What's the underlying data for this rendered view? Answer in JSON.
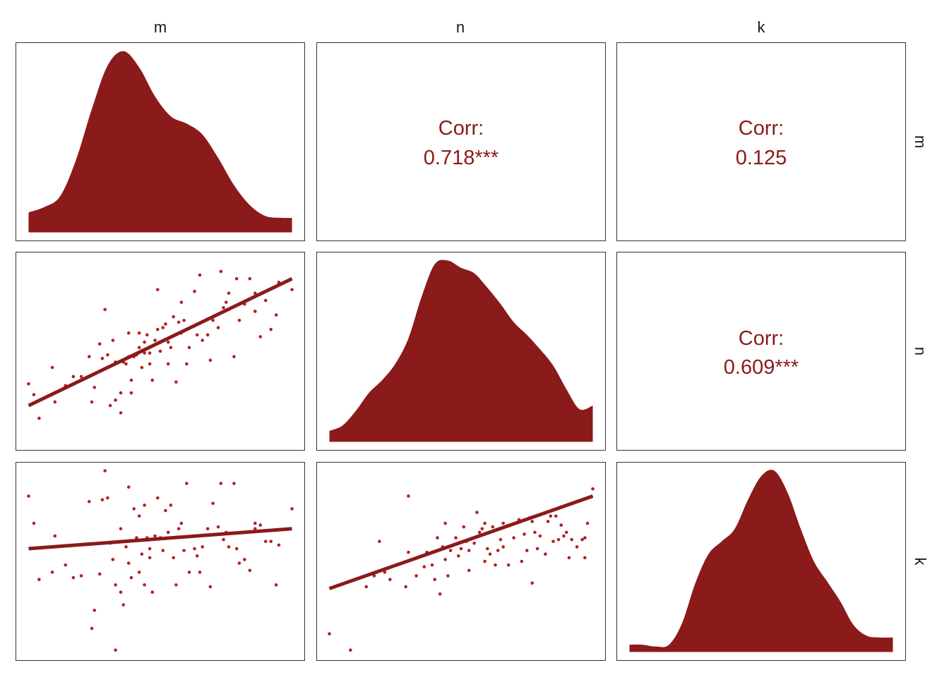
{
  "chart_data": {
    "type": "scatter",
    "variables": [
      "m",
      "n",
      "k"
    ],
    "colors": {
      "fill": "#8b1a1a",
      "points": "#b22222",
      "line": "#8b1a1a",
      "corr_text": "#8b1a1a"
    },
    "correlations": [
      {
        "row": "m",
        "col": "n",
        "label": "Corr:",
        "value": "0.718***"
      },
      {
        "row": "m",
        "col": "k",
        "label": "Corr:",
        "value": "0.125"
      },
      {
        "row": "n",
        "col": "k",
        "label": "Corr:",
        "value": "0.609***"
      }
    ],
    "densities": [
      {
        "variable": "m",
        "x_range": [
          0,
          1
        ],
        "y_range": [
          0,
          1
        ],
        "x": [
          0,
          0.06,
          0.12,
          0.18,
          0.24,
          0.3,
          0.36,
          0.42,
          0.48,
          0.54,
          0.6,
          0.66,
          0.72,
          0.78,
          0.84,
          0.9,
          0.96,
          1
        ],
        "y": [
          0.11,
          0.14,
          0.2,
          0.4,
          0.68,
          0.92,
          1.0,
          0.91,
          0.75,
          0.64,
          0.6,
          0.54,
          0.41,
          0.26,
          0.15,
          0.09,
          0.08,
          0.08
        ]
      },
      {
        "variable": "n",
        "x_range": [
          0,
          1
        ],
        "y_range": [
          0,
          1
        ],
        "x": [
          0,
          0.05,
          0.1,
          0.15,
          0.2,
          0.25,
          0.3,
          0.35,
          0.4,
          0.45,
          0.5,
          0.55,
          0.6,
          0.65,
          0.7,
          0.75,
          0.8,
          0.85,
          0.9,
          0.95,
          1
        ],
        "y": [
          0.06,
          0.09,
          0.17,
          0.27,
          0.34,
          0.43,
          0.57,
          0.8,
          0.98,
          1.0,
          0.96,
          0.93,
          0.85,
          0.76,
          0.66,
          0.59,
          0.51,
          0.42,
          0.29,
          0.18,
          0.2
        ]
      },
      {
        "variable": "k",
        "x_range": [
          0,
          1
        ],
        "y_range": [
          0,
          1
        ],
        "x": [
          0,
          0.05,
          0.1,
          0.15,
          0.2,
          0.25,
          0.3,
          0.35,
          0.4,
          0.45,
          0.5,
          0.55,
          0.6,
          0.65,
          0.7,
          0.75,
          0.8,
          0.85,
          0.9,
          0.95,
          1
        ],
        "y": [
          0.04,
          0.04,
          0.03,
          0.04,
          0.16,
          0.38,
          0.54,
          0.61,
          0.68,
          0.84,
          0.97,
          1.0,
          0.88,
          0.68,
          0.5,
          0.39,
          0.28,
          0.15,
          0.09,
          0.08,
          0.08
        ]
      }
    ],
    "scatters": [
      {
        "x": "m",
        "y": "n",
        "x_range": [
          0,
          1
        ],
        "y_range": [
          0,
          1
        ],
        "fit": [
          [
            0,
            0.2
          ],
          [
            1,
            0.9
          ]
        ],
        "points": [
          [
            0,
            0.32
          ],
          [
            0.02,
            0.26
          ],
          [
            0.04,
            0.13
          ],
          [
            0.09,
            0.41
          ],
          [
            0.1,
            0.22
          ],
          [
            0.2,
            0.36
          ],
          [
            0.23,
            0.47
          ],
          [
            0.24,
            0.22
          ],
          [
            0.28,
            0.46
          ],
          [
            0.29,
            0.73
          ],
          [
            0.3,
            0.48
          ],
          [
            0.31,
            0.2
          ],
          [
            0.32,
            0.56
          ],
          [
            0.33,
            0.23
          ],
          [
            0.33,
            0.44
          ],
          [
            0.35,
            0.27
          ],
          [
            0.35,
            0.16
          ],
          [
            0.36,
            0.44
          ],
          [
            0.37,
            0.43
          ],
          [
            0.38,
            0.47
          ],
          [
            0.38,
            0.6
          ],
          [
            0.39,
            0.27
          ],
          [
            0.39,
            0.34
          ],
          [
            0.4,
            0.47
          ],
          [
            0.41,
            0.48
          ],
          [
            0.42,
            0.52
          ],
          [
            0.42,
            0.6
          ],
          [
            0.43,
            0.41
          ],
          [
            0.44,
            0.49
          ],
          [
            0.44,
            0.55
          ],
          [
            0.45,
            0.59
          ],
          [
            0.46,
            0.43
          ],
          [
            0.46,
            0.49
          ],
          [
            0.47,
            0.34
          ],
          [
            0.48,
            0.56
          ],
          [
            0.49,
            0.62
          ],
          [
            0.49,
            0.84
          ],
          [
            0.5,
            0.5
          ],
          [
            0.51,
            0.63
          ],
          [
            0.52,
            0.65
          ],
          [
            0.53,
            0.43
          ],
          [
            0.53,
            0.55
          ],
          [
            0.54,
            0.52
          ],
          [
            0.55,
            0.69
          ],
          [
            0.56,
            0.33
          ],
          [
            0.57,
            0.66
          ],
          [
            0.58,
            0.6
          ],
          [
            0.58,
            0.77
          ],
          [
            0.59,
            0.67
          ],
          [
            0.6,
            0.43
          ],
          [
            0.61,
            0.52
          ],
          [
            0.63,
            0.83
          ],
          [
            0.64,
            0.59
          ],
          [
            0.65,
            0.92
          ],
          [
            0.66,
            0.56
          ],
          [
            0.68,
            0.59
          ],
          [
            0.69,
            0.45
          ],
          [
            0.7,
            0.67
          ],
          [
            0.72,
            0.63
          ],
          [
            0.73,
            0.94
          ],
          [
            0.74,
            0.74
          ],
          [
            0.75,
            0.77
          ],
          [
            0.76,
            0.82
          ],
          [
            0.78,
            0.47
          ],
          [
            0.79,
            0.9
          ],
          [
            0.8,
            0.67
          ],
          [
            0.82,
            0.76
          ],
          [
            0.84,
            0.9
          ],
          [
            0.86,
            0.72
          ],
          [
            0.86,
            0.82
          ],
          [
            0.88,
            0.58
          ],
          [
            0.9,
            0.78
          ],
          [
            0.92,
            0.62
          ],
          [
            0.94,
            0.7
          ],
          [
            0.95,
            0.88
          ],
          [
            1,
            0.84
          ],
          [
            0.14,
            0.31
          ],
          [
            0.17,
            0.36
          ],
          [
            0.27,
            0.54
          ],
          [
            0.25,
            0.3
          ]
        ]
      },
      {
        "x": "m",
        "y": "k",
        "x_range": [
          0,
          1
        ],
        "y_range": [
          0,
          1
        ],
        "fit": [
          [
            0,
            0.57
          ],
          [
            1,
            0.68
          ]
        ],
        "points": [
          [
            0,
            0.86
          ],
          [
            0.02,
            0.71
          ],
          [
            0.04,
            0.4
          ],
          [
            0.09,
            0.44
          ],
          [
            0.1,
            0.64
          ],
          [
            0.2,
            0.42
          ],
          [
            0.23,
            0.83
          ],
          [
            0.24,
            0.13
          ],
          [
            0.28,
            0.84
          ],
          [
            0.29,
            1.0
          ],
          [
            0.3,
            0.85
          ],
          [
            0.31,
            0.6
          ],
          [
            0.32,
            0.51
          ],
          [
            0.33,
            0.01
          ],
          [
            0.33,
            0.37
          ],
          [
            0.35,
            0.33
          ],
          [
            0.35,
            0.68
          ],
          [
            0.36,
            0.26
          ],
          [
            0.37,
            0.58
          ],
          [
            0.38,
            0.91
          ],
          [
            0.38,
            0.49
          ],
          [
            0.39,
            0.41
          ],
          [
            0.4,
            0.79
          ],
          [
            0.41,
            0.63
          ],
          [
            0.42,
            0.44
          ],
          [
            0.42,
            0.75
          ],
          [
            0.43,
            0.54
          ],
          [
            0.44,
            0.81
          ],
          [
            0.44,
            0.37
          ],
          [
            0.45,
            0.63
          ],
          [
            0.46,
            0.52
          ],
          [
            0.46,
            0.57
          ],
          [
            0.47,
            0.33
          ],
          [
            0.48,
            0.64
          ],
          [
            0.49,
            0.85
          ],
          [
            0.5,
            0.63
          ],
          [
            0.51,
            0.56
          ],
          [
            0.52,
            0.78
          ],
          [
            0.53,
            0.66
          ],
          [
            0.54,
            0.81
          ],
          [
            0.55,
            0.52
          ],
          [
            0.56,
            0.37
          ],
          [
            0.57,
            0.68
          ],
          [
            0.58,
            0.71
          ],
          [
            0.59,
            0.56
          ],
          [
            0.6,
            0.93
          ],
          [
            0.61,
            0.44
          ],
          [
            0.63,
            0.57
          ],
          [
            0.64,
            0.53
          ],
          [
            0.65,
            0.44
          ],
          [
            0.66,
            0.58
          ],
          [
            0.68,
            0.68
          ],
          [
            0.69,
            0.36
          ],
          [
            0.7,
            0.82
          ],
          [
            0.72,
            0.69
          ],
          [
            0.73,
            0.93
          ],
          [
            0.74,
            0.62
          ],
          [
            0.75,
            0.66
          ],
          [
            0.76,
            0.58
          ],
          [
            0.78,
            0.93
          ],
          [
            0.79,
            0.57
          ],
          [
            0.8,
            0.49
          ],
          [
            0.82,
            0.51
          ],
          [
            0.84,
            0.45
          ],
          [
            0.86,
            0.68
          ],
          [
            0.86,
            0.71
          ],
          [
            0.88,
            0.7
          ],
          [
            0.9,
            0.61
          ],
          [
            0.92,
            0.61
          ],
          [
            0.94,
            0.37
          ],
          [
            0.95,
            0.59
          ],
          [
            1,
            0.79
          ],
          [
            0.14,
            0.48
          ],
          [
            0.17,
            0.41
          ],
          [
            0.27,
            0.43
          ],
          [
            0.25,
            0.23
          ]
        ]
      },
      {
        "x": "n",
        "y": "k",
        "x_range": [
          0,
          1
        ],
        "y_range": [
          0,
          1
        ],
        "fit": [
          [
            0,
            0.35
          ],
          [
            1,
            0.86
          ]
        ],
        "points": [
          [
            0,
            0.1
          ],
          [
            0.08,
            0.01
          ],
          [
            0.12,
            0.41
          ],
          [
            0.14,
            0.36
          ],
          [
            0.17,
            0.42
          ],
          [
            0.19,
            0.61
          ],
          [
            0.21,
            0.44
          ],
          [
            0.23,
            0.4
          ],
          [
            0.29,
            0.36
          ],
          [
            0.3,
            0.55
          ],
          [
            0.3,
            0.86
          ],
          [
            0.33,
            0.42
          ],
          [
            0.36,
            0.47
          ],
          [
            0.37,
            0.55
          ],
          [
            0.39,
            0.48
          ],
          [
            0.4,
            0.4
          ],
          [
            0.41,
            0.63
          ],
          [
            0.42,
            0.32
          ],
          [
            0.43,
            0.58
          ],
          [
            0.44,
            0.51
          ],
          [
            0.44,
            0.71
          ],
          [
            0.45,
            0.42
          ],
          [
            0.46,
            0.56
          ],
          [
            0.47,
            0.59
          ],
          [
            0.48,
            0.63
          ],
          [
            0.49,
            0.53
          ],
          [
            0.5,
            0.57
          ],
          [
            0.51,
            0.69
          ],
          [
            0.52,
            0.61
          ],
          [
            0.53,
            0.45
          ],
          [
            0.53,
            0.56
          ],
          [
            0.55,
            0.6
          ],
          [
            0.56,
            0.77
          ],
          [
            0.57,
            0.66
          ],
          [
            0.58,
            0.68
          ],
          [
            0.59,
            0.71
          ],
          [
            0.59,
            0.5
          ],
          [
            0.6,
            0.57
          ],
          [
            0.61,
            0.54
          ],
          [
            0.62,
            0.69
          ],
          [
            0.63,
            0.48
          ],
          [
            0.64,
            0.56
          ],
          [
            0.65,
            0.62
          ],
          [
            0.66,
            0.58
          ],
          [
            0.66,
            0.71
          ],
          [
            0.68,
            0.48
          ],
          [
            0.7,
            0.63
          ],
          [
            0.72,
            0.73
          ],
          [
            0.73,
            0.5
          ],
          [
            0.74,
            0.65
          ],
          [
            0.75,
            0.56
          ],
          [
            0.76,
            0.74
          ],
          [
            0.77,
            0.72
          ],
          [
            0.77,
            0.38
          ],
          [
            0.78,
            0.66
          ],
          [
            0.79,
            0.57
          ],
          [
            0.8,
            0.64
          ],
          [
            0.82,
            0.54
          ],
          [
            0.83,
            0.72
          ],
          [
            0.84,
            0.75
          ],
          [
            0.85,
            0.61
          ],
          [
            0.86,
            0.75
          ],
          [
            0.87,
            0.62
          ],
          [
            0.88,
            0.7
          ],
          [
            0.89,
            0.64
          ],
          [
            0.9,
            0.66
          ],
          [
            0.91,
            0.52
          ],
          [
            0.92,
            0.62
          ],
          [
            0.94,
            0.58
          ],
          [
            0.96,
            0.62
          ],
          [
            0.97,
            0.63
          ],
          [
            0.97,
            0.52
          ],
          [
            0.98,
            0.71
          ],
          [
            1,
            0.9
          ]
        ]
      }
    ]
  }
}
